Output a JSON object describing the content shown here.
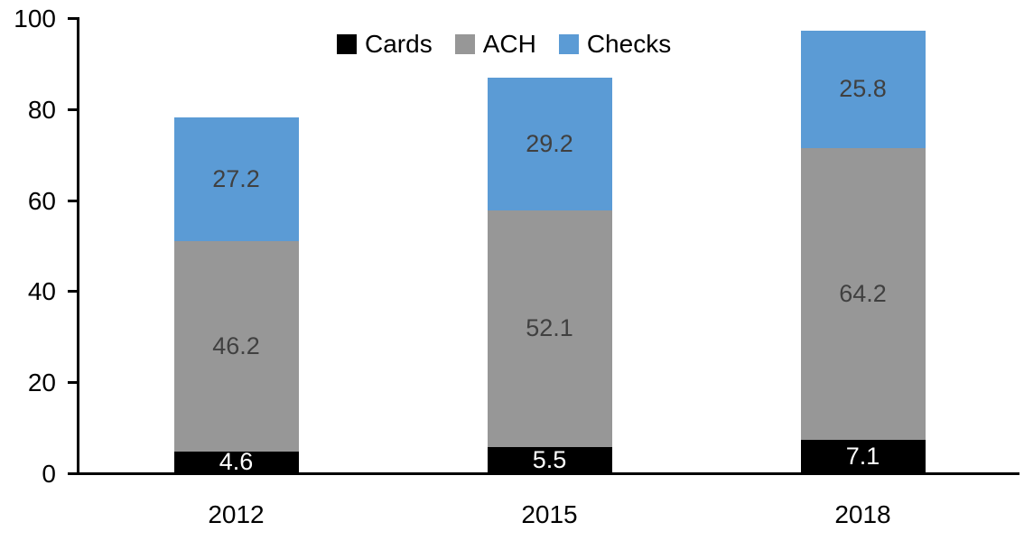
{
  "chart_data": {
    "type": "bar",
    "stacked": true,
    "title": "",
    "xlabel": "",
    "ylabel": "",
    "categories": [
      "2012",
      "2015",
      "2018"
    ],
    "series": [
      {
        "name": "Cards",
        "color": "#000000",
        "label_color": "#FFFFFF",
        "values": [
          4.6,
          5.5,
          7.1
        ]
      },
      {
        "name": "ACH",
        "color": "#979797",
        "label_color": "#404040",
        "values": [
          46.2,
          52.1,
          64.2
        ]
      },
      {
        "name": "Checks",
        "color": "#5B9BD5",
        "label_color": "#404040",
        "values": [
          27.2,
          29.2,
          25.8
        ]
      }
    ],
    "ylim": [
      0,
      100
    ],
    "yticks": [
      0,
      20,
      40,
      60,
      80,
      100
    ],
    "legend_position": "top-center",
    "legend_labels": [
      "Cards",
      "ACH",
      "Checks"
    ],
    "grid": false,
    "axis_color": "#000000",
    "tick_label_color": "#000000",
    "background_color": "#FFFFFF"
  }
}
